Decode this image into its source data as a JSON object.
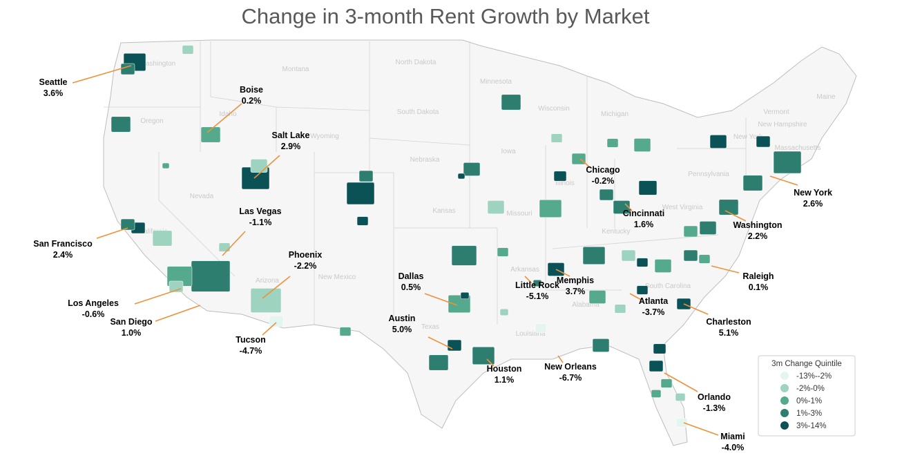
{
  "title": "Change in 3-month Rent Growth by Market",
  "markets": [
    {
      "name": "Seattle",
      "change": "3.6%"
    },
    {
      "name": "Boise",
      "change": "0.2%"
    },
    {
      "name": "Salt Lake",
      "change": "2.9%"
    },
    {
      "name": "Las Vegas",
      "change": "-1.1%"
    },
    {
      "name": "San Francisco",
      "change": "2.4%"
    },
    {
      "name": "Phoenix",
      "change": "-2.2%"
    },
    {
      "name": "Los Angeles",
      "change": "-0.6%"
    },
    {
      "name": "San Diego",
      "change": "1.0%"
    },
    {
      "name": "Tucson",
      "change": "-4.7%"
    },
    {
      "name": "Dallas",
      "change": "0.5%"
    },
    {
      "name": "Austin",
      "change": "5.0%"
    },
    {
      "name": "Houston",
      "change": "1.1%"
    },
    {
      "name": "Little Rock",
      "change": "-5.1%"
    },
    {
      "name": "Memphis",
      "change": "3.7%"
    },
    {
      "name": "New Orleans",
      "change": "-6.7%"
    },
    {
      "name": "Atlanta",
      "change": "-3.7%"
    },
    {
      "name": "Charleston",
      "change": "5.1%"
    },
    {
      "name": "Chicago",
      "change": "-0.2%"
    },
    {
      "name": "Cincinnati",
      "change": "1.6%"
    },
    {
      "name": "Washington",
      "change": "2.2%"
    },
    {
      "name": "Raleigh",
      "change": "0.1%"
    },
    {
      "name": "New York",
      "change": "2.6%"
    },
    {
      "name": "Orlando",
      "change": "-1.3%"
    },
    {
      "name": "Miami",
      "change": "-4.0%"
    }
  ],
  "states": [
    "Washington",
    "Montana",
    "North Dakota",
    "Minnesota",
    "Wisconsin",
    "South Dakota",
    "Oregon",
    "Idaho",
    "Wyoming",
    "Michigan",
    "Iowa",
    "Nebraska",
    "Nevada",
    "Illinois",
    "California",
    "Kansas",
    "Missouri",
    "Kentucky",
    "Arizona",
    "New Mexico",
    "Arkansas",
    "Texas",
    "Louisiana",
    "Alabama",
    "South Carolina",
    "Pennsylvania",
    "New York",
    "Vermont",
    "New Hampshire",
    "Massachusetts",
    "Maine",
    "West Virginia"
  ],
  "legend": {
    "title": "3m Change Quintile",
    "items": [
      {
        "label": "-13%--2%",
        "color": "#e4f5f0"
      },
      {
        "label": "-2%-0%",
        "color": "#9ed3bf"
      },
      {
        "label": "0%-1%",
        "color": "#55a98c"
      },
      {
        "label": "1%-3%",
        "color": "#2e7e70"
      },
      {
        "label": "3%-14%",
        "color": "#0b5257"
      }
    ]
  }
}
